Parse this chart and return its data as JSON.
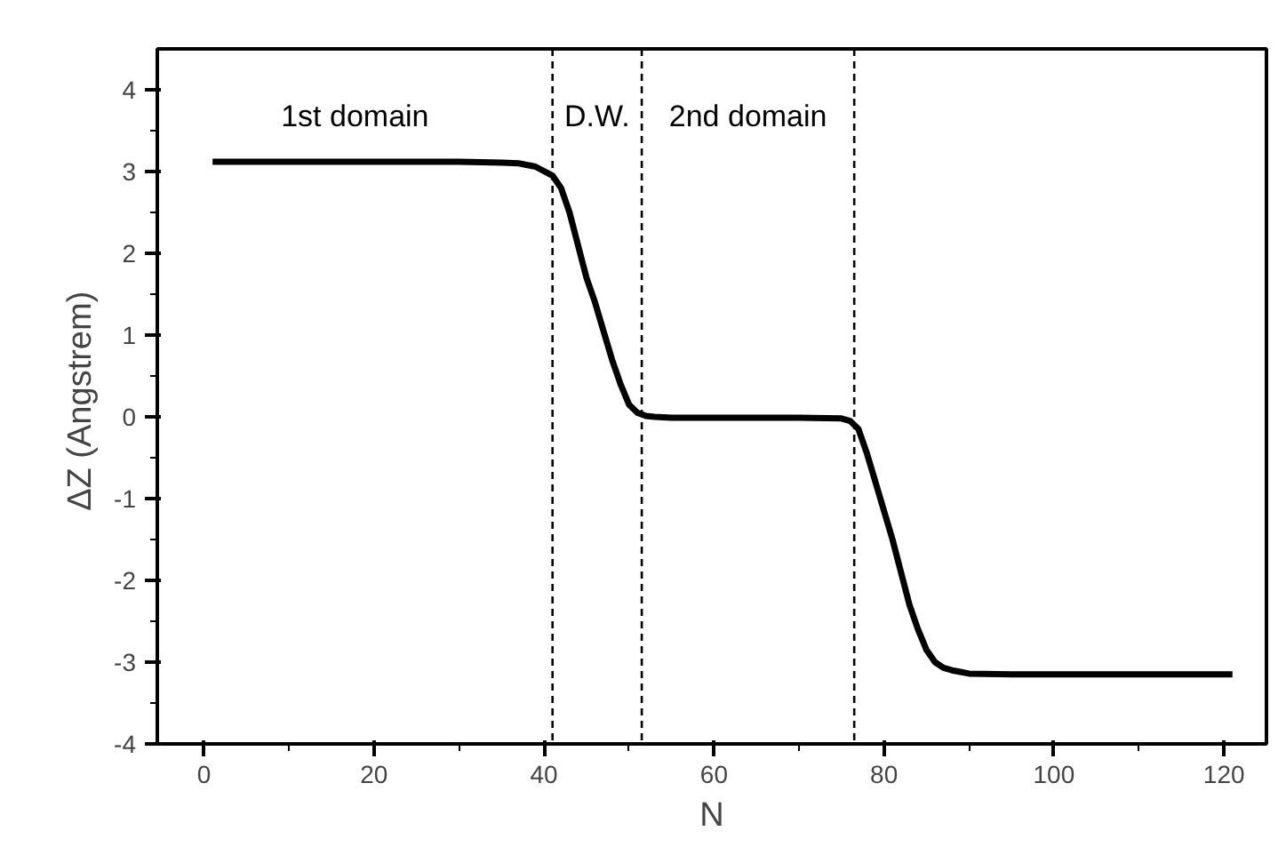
{
  "chart_data": {
    "type": "line",
    "xlabel": "N",
    "ylabel": "ΔZ  (Angstrem)",
    "x": [
      1,
      5,
      10,
      20,
      30,
      35,
      37,
      39,
      41,
      42,
      43,
      44,
      45,
      46,
      47,
      48,
      49,
      50,
      51,
      52,
      53,
      55,
      60,
      70,
      75,
      76,
      77,
      78,
      79,
      80,
      81,
      82,
      83,
      84,
      85,
      86,
      87,
      88,
      89,
      90,
      95,
      100,
      110,
      121
    ],
    "series": [
      {
        "color": "#000000",
        "values": [
          3.12,
          3.12,
          3.12,
          3.12,
          3.12,
          3.11,
          3.1,
          3.06,
          2.95,
          2.8,
          2.5,
          2.1,
          1.7,
          1.4,
          1.05,
          0.7,
          0.4,
          0.15,
          0.05,
          0.01,
          0.0,
          -0.01,
          -0.01,
          -0.01,
          -0.02,
          -0.05,
          -0.15,
          -0.45,
          -0.8,
          -1.15,
          -1.5,
          -1.9,
          -2.3,
          -2.6,
          -2.85,
          -3.0,
          -3.07,
          -3.1,
          -3.12,
          -3.14,
          -3.15,
          -3.15,
          -3.15,
          -3.15
        ]
      }
    ],
    "xlim": [
      -5.5,
      125
    ],
    "ylim": [
      -4,
      4.5
    ],
    "xticks": [
      0,
      {
        "value": 10,
        "label": null
      },
      20,
      {
        "value": 30,
        "label": null
      },
      40,
      {
        "value": 50,
        "label": null
      },
      60,
      {
        "value": 70,
        "label": null
      },
      80,
      {
        "value": 90,
        "label": null
      },
      100,
      {
        "value": 110,
        "label": null
      },
      120
    ],
    "yticks": [
      -4,
      {
        "value": -3.5,
        "label": null
      },
      -3,
      {
        "value": -2.5,
        "label": null
      },
      -2,
      {
        "value": -1.5,
        "label": null
      },
      -1,
      {
        "value": -0.5,
        "label": null
      },
      0,
      {
        "value": 0.5,
        "label": null
      },
      1,
      {
        "value": 1.5,
        "label": null
      },
      2,
      {
        "value": 2.5,
        "label": null
      },
      3,
      {
        "value": 3.5,
        "label": null
      },
      4
    ],
    "ref_lines": [
      {
        "axis": "x",
        "value": 41,
        "line_style": "dashed",
        "color": "#000000"
      },
      {
        "axis": "x",
        "value": 51.5,
        "line_style": "dashed",
        "color": "#000000"
      },
      {
        "axis": "x",
        "value": 76.5,
        "line_style": "dashed",
        "color": "#000000"
      }
    ],
    "annotations": [
      "1st domain",
      "D.W.",
      "2nd domain"
    ],
    "marker": "none",
    "line_style": "solid"
  }
}
